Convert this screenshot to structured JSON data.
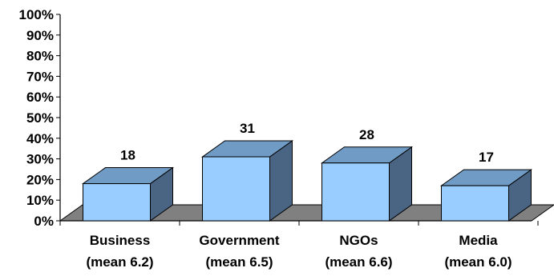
{
  "chart_data": {
    "type": "bar",
    "style": "3d",
    "categories": [
      [
        "Business",
        "(mean 6.2)"
      ],
      [
        "Government",
        "(mean 6.5)"
      ],
      [
        "NGOs",
        "(mean 6.6)"
      ],
      [
        "Media",
        "(mean 6.0)"
      ]
    ],
    "values": [
      18,
      31,
      28,
      17
    ],
    "data_labels": [
      "18",
      "31",
      "28",
      "17"
    ],
    "yticks": [
      "0%",
      "10%",
      "20%",
      "30%",
      "40%",
      "50%",
      "60%",
      "70%",
      "80%",
      "90%",
      "100%"
    ],
    "ylim": [
      0,
      100
    ],
    "grid": false,
    "legend": "none",
    "colors": {
      "bar_front": "#99ccff",
      "bar_top": "#6f9bc4",
      "bar_side": "#4a6484",
      "floor": "#808080",
      "axis": "#000000"
    }
  }
}
